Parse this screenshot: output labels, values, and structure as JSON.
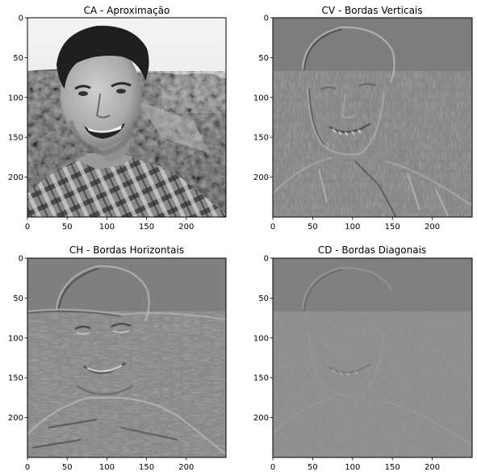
{
  "figure": {
    "background": "#ffffff"
  },
  "chart_data": [
    {
      "type": "heatmap",
      "title": "CA - Aproximação",
      "xlabel": "",
      "ylabel": "",
      "xlim": [
        0,
        250
      ],
      "ylim": [
        250,
        0
      ],
      "x_ticks": [
        0,
        50,
        100,
        150,
        200
      ],
      "y_ticks": [
        0,
        50,
        100,
        150,
        200
      ],
      "x_tick_labels": [
        "0",
        "50",
        "100",
        "150",
        "200"
      ],
      "y_tick_labels": [
        "0",
        "50",
        "100",
        "150",
        "200"
      ],
      "colormap": "gray",
      "content": "grayscale portrait photo"
    },
    {
      "type": "heatmap",
      "title": "CV - Bordas Verticais",
      "xlabel": "",
      "ylabel": "",
      "xlim": [
        0,
        250
      ],
      "ylim": [
        250,
        0
      ],
      "x_ticks": [
        0,
        50,
        100,
        150,
        200
      ],
      "y_ticks": [
        0,
        50,
        100,
        150,
        200
      ],
      "x_tick_labels": [
        "0",
        "50",
        "100",
        "150",
        "200"
      ],
      "y_tick_labels": [
        "0",
        "50",
        "100",
        "150",
        "200"
      ],
      "colormap": "gray",
      "content": "vertical edge detail coefficients"
    },
    {
      "type": "heatmap",
      "title": "CH - Bordas Horizontais",
      "xlabel": "",
      "ylabel": "",
      "xlim": [
        0,
        250
      ],
      "ylim": [
        250,
        0
      ],
      "x_ticks": [
        0,
        50,
        100,
        150,
        200
      ],
      "y_ticks": [
        0,
        50,
        100,
        150,
        200
      ],
      "x_tick_labels": [
        "0",
        "50",
        "100",
        "150",
        "200"
      ],
      "y_tick_labels": [
        "0",
        "50",
        "100",
        "150",
        "200"
      ],
      "colormap": "gray",
      "content": "horizontal edge detail coefficients"
    },
    {
      "type": "heatmap",
      "title": "CD - Bordas Diagonais",
      "xlabel": "",
      "ylabel": "",
      "xlim": [
        0,
        250
      ],
      "ylim": [
        250,
        0
      ],
      "x_ticks": [
        0,
        50,
        100,
        150,
        200
      ],
      "y_ticks": [
        0,
        50,
        100,
        150,
        200
      ],
      "x_tick_labels": [
        "0",
        "50",
        "100",
        "150",
        "200"
      ],
      "y_tick_labels": [
        "0",
        "50",
        "100",
        "150",
        "200"
      ],
      "colormap": "gray",
      "content": "diagonal edge detail coefficients"
    }
  ]
}
